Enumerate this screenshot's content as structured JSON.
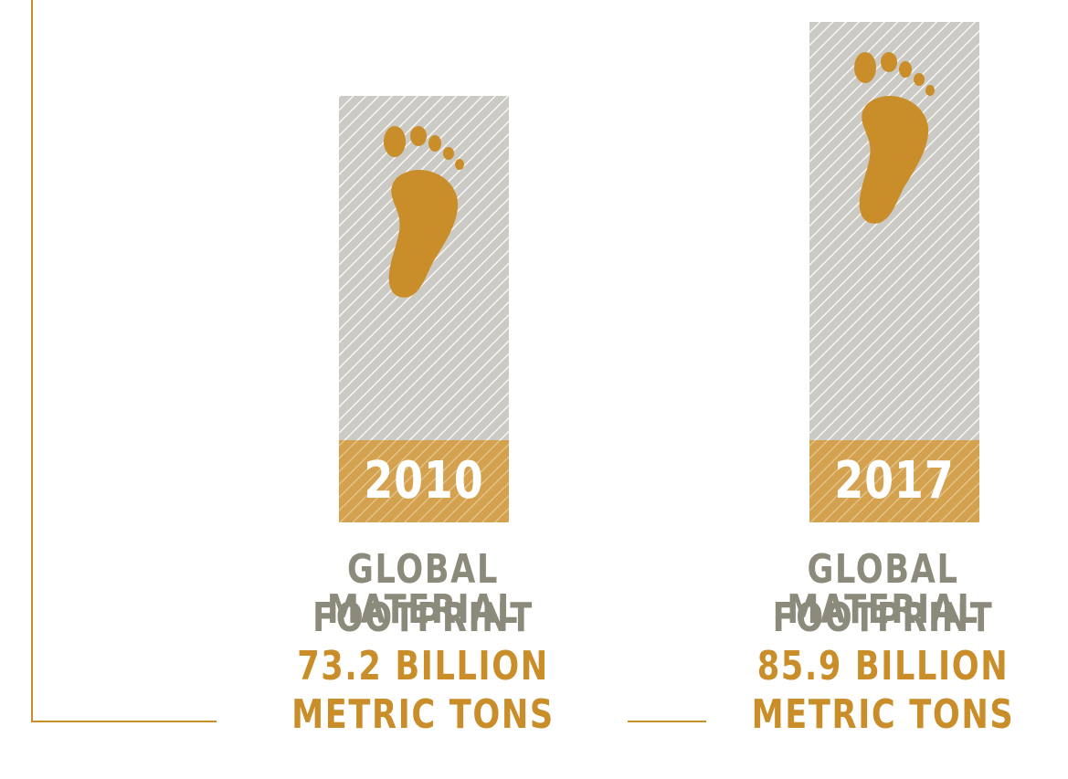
{
  "chart_data": {
    "type": "bar",
    "categories": [
      "2010",
      "2017"
    ],
    "series": [
      {
        "values": [
          73.2,
          85.9
        ]
      }
    ],
    "unit": "BILLION METRIC TONS",
    "ylim": [
      0,
      85.9
    ]
  },
  "captions": [
    {
      "title_line1": "GLOBAL MATERIAL",
      "title_line2": "FOOTPRINT",
      "value_line1": "73.2 BILLION",
      "value_line2": "METRIC TONS"
    },
    {
      "title_line1": "GLOBAL MATERIAL",
      "title_line2": "FOOTPRINT",
      "value_line1": "85.9 BILLION",
      "value_line2": "METRIC TONS"
    }
  ],
  "icons": [
    "footprint-icon"
  ],
  "colors": {
    "accent": "#c98e2a",
    "bar_fill": "#cbcac5",
    "band_fill": "#d4a24f",
    "caption_grey": "#8b8a7b"
  }
}
